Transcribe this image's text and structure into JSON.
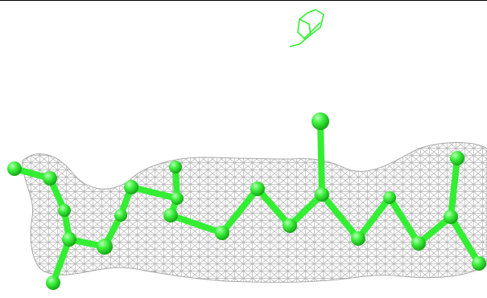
{
  "viewer": {
    "background": "#ffffff",
    "mesh_color": "#b8b8b8",
    "ligand_color": "#33ee33",
    "frame_line_color": "#000000"
  },
  "scene": {
    "subject": "molecule-in-density-mesh",
    "representation": "ball-and-stick"
  }
}
